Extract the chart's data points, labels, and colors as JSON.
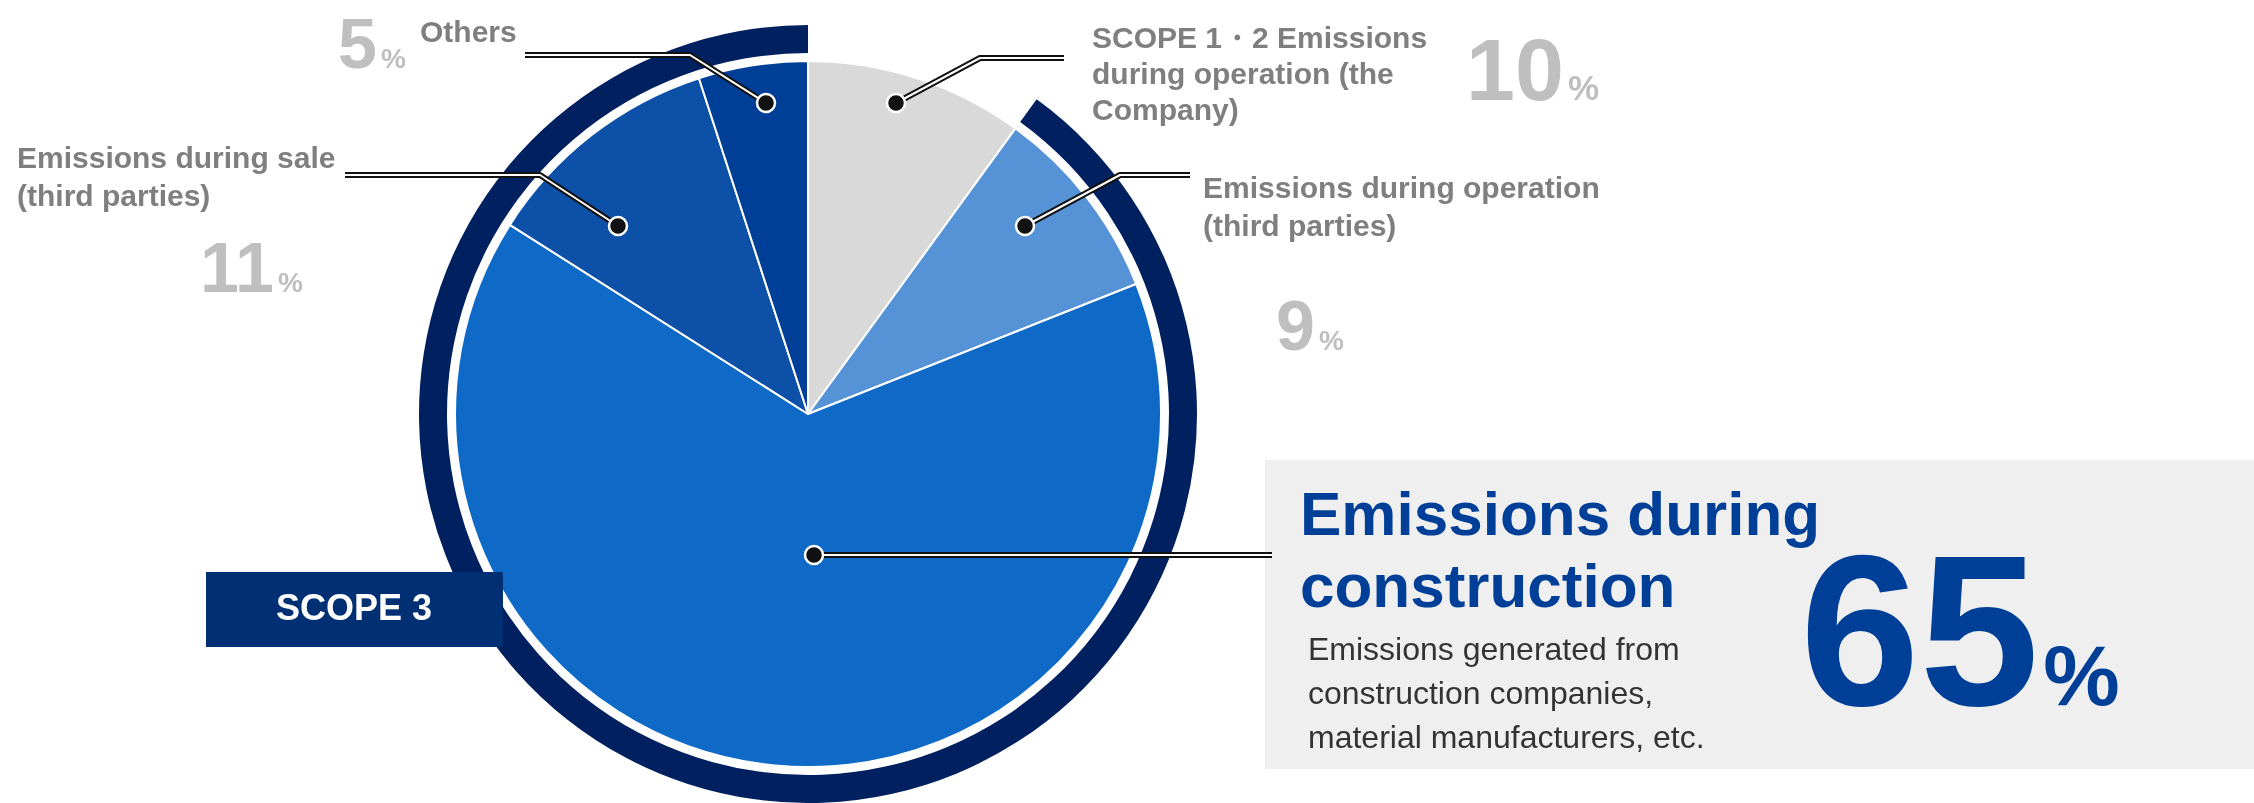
{
  "chart_data": {
    "type": "pie",
    "categories": [
      "SCOPE 1・2 Emissions during operation (the Company)",
      "Emissions during operation (third parties)",
      "Emissions during construction",
      "Emissions during sale (third parties)",
      "Others"
    ],
    "values": [
      10,
      9,
      65,
      11,
      5
    ],
    "value_labels": [
      "10%",
      "9%",
      "65%",
      "11%",
      "5%"
    ],
    "colors": [
      "#d9d9d9",
      "#5592d6",
      "#0e6ac6",
      "#0d50a8",
      "#003f98"
    ],
    "annotations": [
      "SCOPE 3",
      "Emissions generated from construction companies, material manufacturers, etc."
    ],
    "legend": false
  }
}
